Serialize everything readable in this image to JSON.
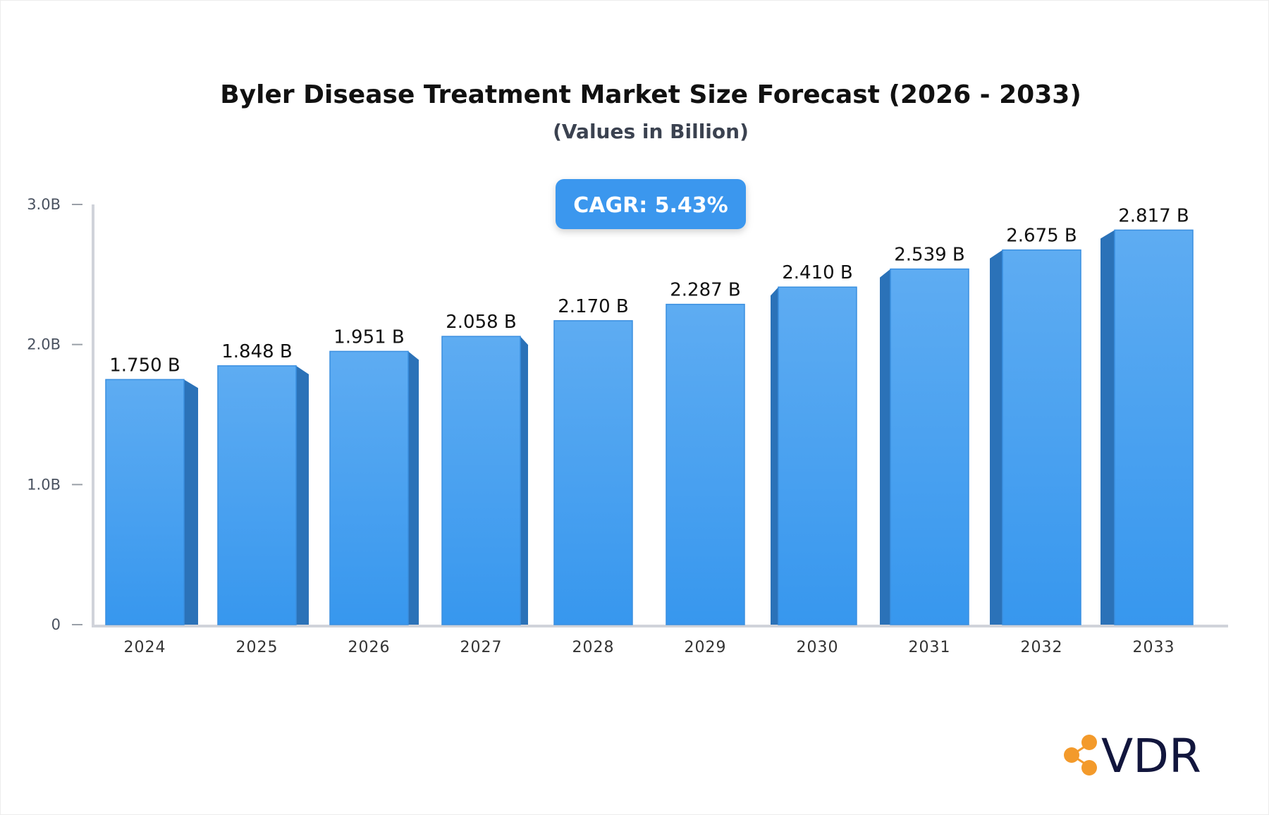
{
  "chart_data": {
    "type": "bar",
    "title": "Byler Disease Treatment Market Size Forecast (2026 - 2033)",
    "subtitle": "(Values in Billion)",
    "categories": [
      "2024",
      "2025",
      "2026",
      "2027",
      "2028",
      "2029",
      "2030",
      "2031",
      "2032",
      "2033"
    ],
    "values": [
      1.75,
      1.848,
      1.951,
      2.058,
      2.17,
      2.287,
      2.41,
      2.539,
      2.675,
      2.817
    ],
    "value_labels": [
      "1.750 B",
      "1.848 B",
      "1.951 B",
      "2.058 B",
      "2.170 B",
      "2.287 B",
      "2.410 B",
      "2.539 B",
      "2.675 B",
      "2.817 B"
    ],
    "y_ticks": [
      0,
      1,
      2,
      3
    ],
    "y_tick_labels": [
      "0",
      "1.0B",
      "2.0B",
      "3.0B"
    ],
    "ylim": [
      0,
      3
    ],
    "xlabel": "",
    "ylabel": "",
    "grid": false,
    "annotation": "CAGR: 5.43%",
    "colors": {
      "bar_top": "#5eacf2",
      "bar_bottom": "#3797ee",
      "bar_side": "#2b72b8",
      "badge": "#3a97ee"
    }
  },
  "logo": {
    "text": "VDR",
    "icon": "share-nodes-icon",
    "color": "#f39a2b"
  }
}
